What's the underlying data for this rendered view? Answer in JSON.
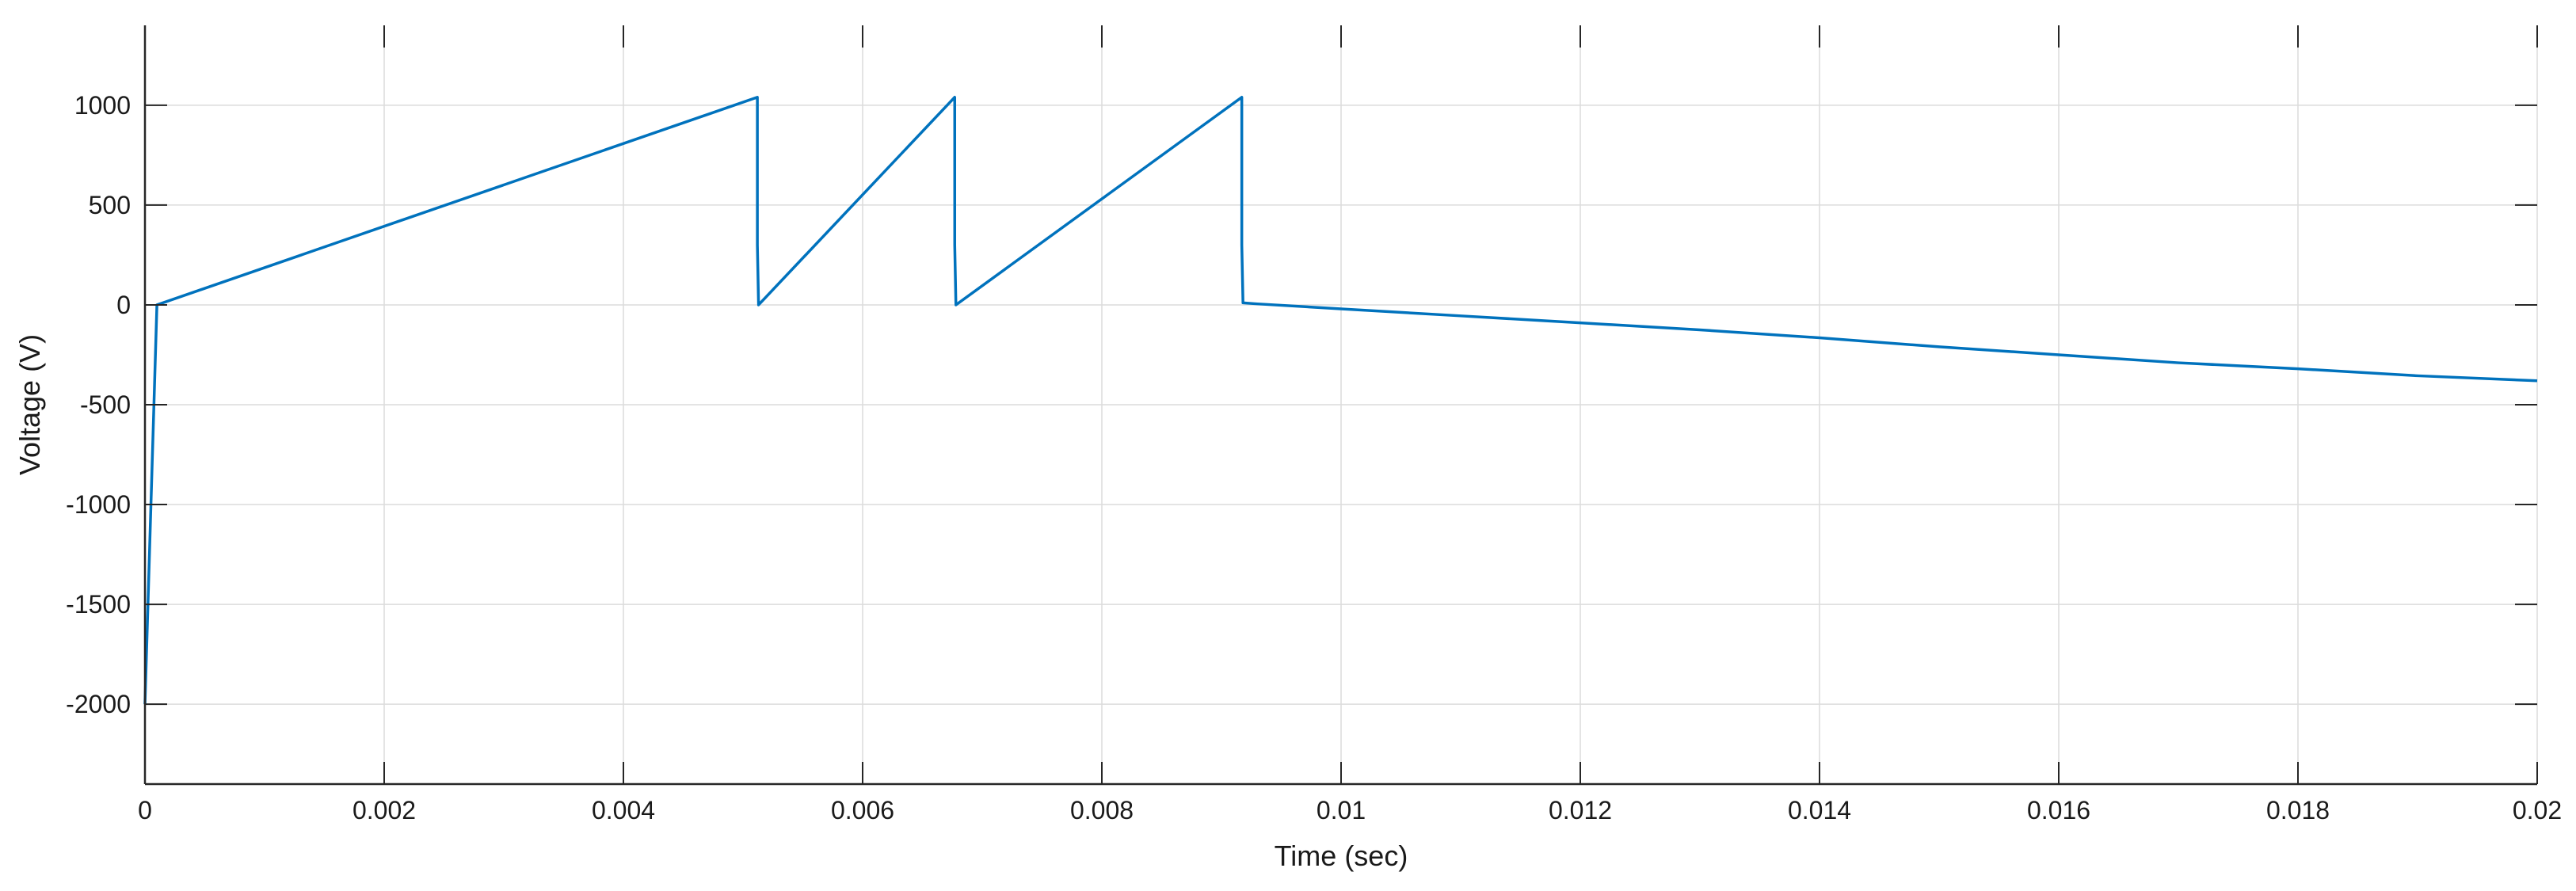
{
  "chart_data": {
    "type": "line",
    "title": "",
    "xlabel": "Time (sec)",
    "ylabel": "Voltage (V)",
    "xlim": [
      0,
      0.02
    ],
    "ylim": [
      -2400,
      1400
    ],
    "xticks": [
      0,
      0.002,
      0.004,
      0.006,
      0.008,
      0.01,
      0.012,
      0.014,
      0.016,
      0.018,
      0.02
    ],
    "xtick_labels": [
      "0",
      "0.002",
      "0.004",
      "0.006",
      "0.008",
      "0.01",
      "0.012",
      "0.014",
      "0.016",
      "0.018",
      "0.02"
    ],
    "yticks": [
      1000,
      500,
      0,
      -500,
      -1000,
      -1500,
      -2000
    ],
    "ytick_labels": [
      "1000",
      "500",
      "0",
      "-500",
      "-1000",
      "-1500",
      "-2000"
    ],
    "grid": true,
    "legend": "none",
    "colors": {
      "line": "#0072BD",
      "grid": "#dcdcdc",
      "axis": "#262626"
    },
    "series": [
      {
        "x": [
          0,
          0.0001,
          0.00512,
          0.00512,
          0.00513,
          0.00677,
          0.00677,
          0.00678,
          0.00917,
          0.00917,
          0.00918,
          0.0093,
          0.01,
          0.011,
          0.012,
          0.013,
          0.014,
          0.015,
          0.016,
          0.017,
          0.018,
          0.019,
          0.02
        ],
        "y": [
          -2000,
          0,
          1040,
          300,
          0,
          1040,
          300,
          0,
          1040,
          300,
          10,
          5,
          -20,
          -55,
          -90,
          -125,
          -165,
          -210,
          -250,
          -290,
          -320,
          -355,
          -380
        ]
      }
    ]
  }
}
